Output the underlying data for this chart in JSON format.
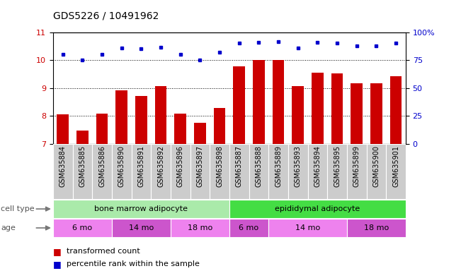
{
  "title": "GDS5226 / 10491962",
  "samples": [
    "GSM635884",
    "GSM635885",
    "GSM635886",
    "GSM635890",
    "GSM635891",
    "GSM635892",
    "GSM635896",
    "GSM635897",
    "GSM635898",
    "GSM635887",
    "GSM635888",
    "GSM635889",
    "GSM635893",
    "GSM635894",
    "GSM635895",
    "GSM635899",
    "GSM635900",
    "GSM635901"
  ],
  "transformed_count": [
    8.05,
    7.48,
    8.08,
    8.92,
    8.72,
    9.08,
    8.08,
    7.75,
    8.28,
    9.78,
    10.0,
    10.0,
    9.08,
    9.55,
    9.52,
    9.18,
    9.18,
    9.42
  ],
  "percentile_rank_left": [
    10.22,
    10.0,
    10.22,
    10.45,
    10.42,
    10.47,
    10.22,
    10.02,
    10.28,
    10.62,
    10.65,
    10.68,
    10.45,
    10.65,
    10.62,
    10.52,
    10.52,
    10.62
  ],
  "bar_color": "#cc0000",
  "dot_color": "#0000cc",
  "ylim_left": [
    7,
    11
  ],
  "ylim_right": [
    0,
    100
  ],
  "yticks_left": [
    7,
    8,
    9,
    10,
    11
  ],
  "yticks_right": [
    0,
    25,
    50,
    75,
    100
  ],
  "ytick_labels_right": [
    "0",
    "25",
    "50",
    "75",
    "100%"
  ],
  "hgrid_lines": [
    8,
    9,
    10
  ],
  "cell_type_groups": [
    {
      "label": "bone marrow adipocyte",
      "start": 0,
      "end": 9,
      "color": "#aaeaaa"
    },
    {
      "label": "epididymal adipocyte",
      "start": 9,
      "end": 18,
      "color": "#44dd44"
    }
  ],
  "age_groups": [
    {
      "label": "6 mo",
      "start": 0,
      "end": 3,
      "color": "#ee82ee"
    },
    {
      "label": "14 mo",
      "start": 3,
      "end": 6,
      "color": "#cc55cc"
    },
    {
      "label": "18 mo",
      "start": 6,
      "end": 9,
      "color": "#ee82ee"
    },
    {
      "label": "6 mo",
      "start": 9,
      "end": 11,
      "color": "#cc55cc"
    },
    {
      "label": "14 mo",
      "start": 11,
      "end": 15,
      "color": "#ee82ee"
    },
    {
      "label": "18 mo",
      "start": 15,
      "end": 18,
      "color": "#cc55cc"
    }
  ],
  "cell_type_label": "cell type",
  "age_label": "age",
  "legend_bar_label": "transformed count",
  "legend_dot_label": "percentile rank within the sample",
  "bar_width": 0.6,
  "label_fontsize": 7,
  "tick_fontsize": 8,
  "title_fontsize": 10
}
